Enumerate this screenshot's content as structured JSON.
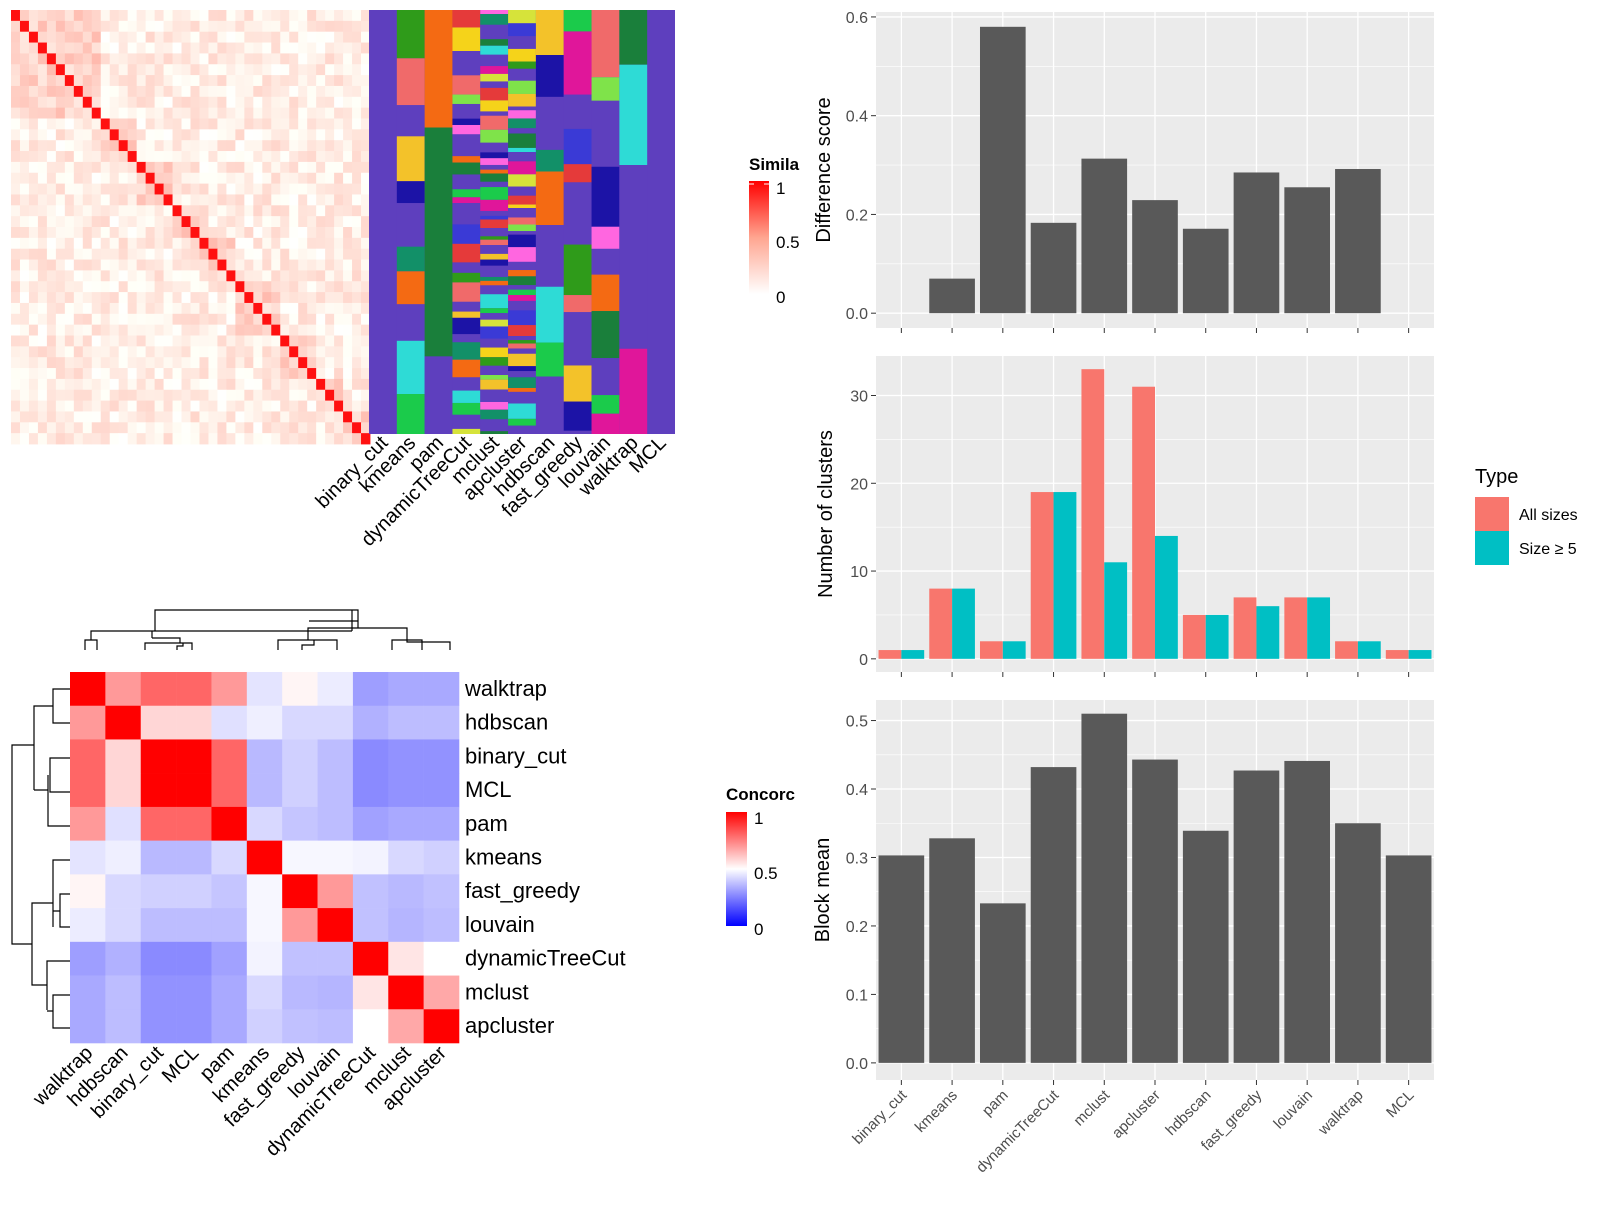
{
  "colors": {
    "sim_high": "#FF0000",
    "sim_low": "#FFFFFF",
    "conc_high": "#FF0000",
    "conc_mid": "#FFFFFF",
    "conc_low": "#0000FF",
    "bar_fill": "#595959",
    "panel_bg": "#EBEBEB",
    "grid": "#FFFFFF",
    "all_sizes": "#F8766D",
    "size_ge5": "#00BFC4",
    "cluster_bg": "#5E3FBE"
  },
  "chart_data": [
    {
      "id": "similarity_heatmap",
      "type": "heatmap",
      "legend_title": "Simila",
      "legend_ticks": [
        "1",
        "0.5",
        "0"
      ],
      "note": "",
      "column_labels": [
        "binary_cut",
        "kmeans",
        "pam",
        "dynamicTreeCut",
        "mclust",
        "apcluster",
        "hdbscan",
        "fast_greedy",
        "louvain",
        "walktrap",
        "MCL"
      ]
    },
    {
      "id": "concordance_heatmap",
      "type": "heatmap",
      "legend_title": "Concorc",
      "legend_ticks": [
        "1",
        "0.5",
        "0"
      ],
      "rows": [
        "walktrap",
        "hdbscan",
        "binary_cut",
        "MCL",
        "pam",
        "kmeans",
        "fast_greedy",
        "louvain",
        "dynamicTreeCut",
        "mclust",
        "apcluster"
      ],
      "columns": [
        "walktrap",
        "hdbscan",
        "binary_cut",
        "MCL",
        "pam",
        "kmeans",
        "fast_greedy",
        "louvain",
        "dynamicTreeCut",
        "mclust",
        "apcluster"
      ],
      "values": [
        [
          1.0,
          0.7,
          0.8,
          0.8,
          0.7,
          0.43,
          0.52,
          0.45,
          0.25,
          0.28,
          0.28
        ],
        [
          0.7,
          1.0,
          0.58,
          0.58,
          0.42,
          0.46,
          0.4,
          0.4,
          0.3,
          0.33,
          0.33
        ],
        [
          0.8,
          0.58,
          1.0,
          1.0,
          0.8,
          0.32,
          0.38,
          0.33,
          0.2,
          0.22,
          0.22
        ],
        [
          0.8,
          0.58,
          1.0,
          1.0,
          0.8,
          0.32,
          0.38,
          0.33,
          0.2,
          0.22,
          0.22
        ],
        [
          0.7,
          0.42,
          0.8,
          0.8,
          1.0,
          0.4,
          0.35,
          0.33,
          0.26,
          0.28,
          0.28
        ],
        [
          0.43,
          0.46,
          0.32,
          0.32,
          0.4,
          1.0,
          0.48,
          0.48,
          0.47,
          0.4,
          0.38
        ],
        [
          0.52,
          0.4,
          0.38,
          0.38,
          0.35,
          0.48,
          1.0,
          0.7,
          0.34,
          0.32,
          0.34
        ],
        [
          0.45,
          0.4,
          0.33,
          0.33,
          0.33,
          0.48,
          0.7,
          1.0,
          0.34,
          0.31,
          0.33
        ],
        [
          0.25,
          0.3,
          0.2,
          0.2,
          0.26,
          0.47,
          0.34,
          0.34,
          1.0,
          0.55,
          0.5
        ],
        [
          0.28,
          0.33,
          0.22,
          0.22,
          0.28,
          0.4,
          0.32,
          0.31,
          0.55,
          1.0,
          0.67
        ],
        [
          0.28,
          0.33,
          0.22,
          0.22,
          0.28,
          0.38,
          0.34,
          0.33,
          0.5,
          0.67,
          1.0
        ]
      ]
    },
    {
      "id": "difference_score",
      "type": "bar",
      "categories": [
        "binary_cut",
        "kmeans",
        "pam",
        "dynamicTreeCut",
        "mclust",
        "apcluster",
        "hdbscan",
        "fast_greedy",
        "louvain",
        "walktrap",
        "MCL"
      ],
      "values": [
        0.0,
        0.07,
        0.58,
        0.183,
        0.313,
        0.229,
        0.171,
        0.285,
        0.255,
        0.292,
        0.0
      ],
      "ylabel": "Difference score",
      "ylim": [
        -0.03,
        0.61
      ],
      "yticks": [
        0.0,
        0.2,
        0.4,
        0.6
      ],
      "ytick_labels": [
        "0.0",
        "0.2",
        "0.4",
        "0.6"
      ]
    },
    {
      "id": "number_of_clusters",
      "type": "bar",
      "categories": [
        "binary_cut",
        "kmeans",
        "pam",
        "dynamicTreeCut",
        "mclust",
        "apcluster",
        "hdbscan",
        "fast_greedy",
        "louvain",
        "walktrap",
        "MCL"
      ],
      "series": [
        {
          "name": "All sizes",
          "values": [
            1,
            8,
            2,
            19,
            33,
            31,
            5,
            7,
            7,
            2,
            1
          ]
        },
        {
          "name": "Size ≥ 5",
          "values": [
            1,
            8,
            2,
            19,
            11,
            14,
            5,
            6,
            7,
            2,
            1
          ]
        }
      ],
      "ylabel": "Number of clusters",
      "ylim": [
        -1.5,
        34.5
      ],
      "yticks": [
        0,
        10,
        20,
        30
      ],
      "ytick_labels": [
        "0",
        "10",
        "20",
        "30"
      ],
      "legend_title": "Type",
      "legend_position": "right"
    },
    {
      "id": "block_mean",
      "type": "bar",
      "categories": [
        "binary_cut",
        "kmeans",
        "pam",
        "dynamicTreeCut",
        "mclust",
        "apcluster",
        "hdbscan",
        "fast_greedy",
        "louvain",
        "walktrap",
        "MCL"
      ],
      "values": [
        0.303,
        0.328,
        0.233,
        0.432,
        0.51,
        0.443,
        0.339,
        0.427,
        0.441,
        0.35,
        0.303
      ],
      "ylabel": "Block mean",
      "ylim": [
        -0.025,
        0.53
      ],
      "yticks": [
        0.0,
        0.1,
        0.2,
        0.3,
        0.4,
        0.5
      ],
      "ytick_labels": [
        "0.0",
        "0.1",
        "0.2",
        "0.3",
        "0.4",
        "0.5"
      ]
    }
  ]
}
